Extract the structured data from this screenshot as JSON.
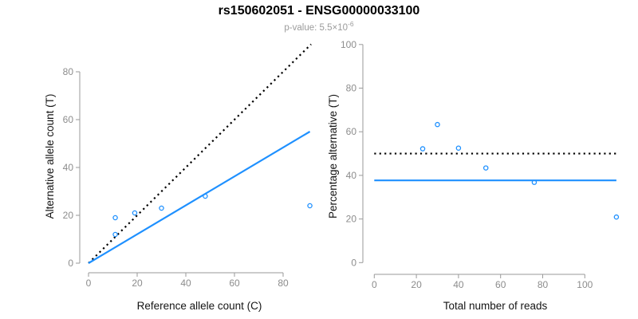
{
  "header": {
    "title": "rs150602051 - ENSG00000033100",
    "subtitle_prefix": "p-value: 5.5×10",
    "subtitle_exponent": "-6"
  },
  "colors": {
    "accent_blue": "#1E90FF",
    "axis_gray": "#9a9a9a",
    "dotted_black": "#000000"
  },
  "chart_data": [
    {
      "type": "scatter",
      "name": "allele-counts-scatter",
      "xlabel": "Reference allele count (C)",
      "ylabel": "Alternative allele count (T)",
      "x_ticks": [
        0,
        20,
        40,
        60,
        80
      ],
      "y_ticks": [
        0,
        20,
        40,
        60,
        80
      ],
      "xlim": [
        0,
        91.5
      ],
      "ylim": [
        0,
        91.5
      ],
      "grid": false,
      "legend": "none",
      "point_color": "#1E90FF",
      "points": [
        [
          11,
          19
        ],
        [
          11,
          12
        ],
        [
          19,
          21
        ],
        [
          30,
          23
        ],
        [
          48,
          28
        ],
        [
          91,
          24
        ]
      ],
      "lines": [
        {
          "name": "identity-line",
          "style": "dotted",
          "color": "#000000",
          "x1": 0,
          "y1": 0,
          "x2": 91.5,
          "y2": 91.5
        },
        {
          "name": "fitted-line",
          "style": "solid",
          "color": "#1E90FF",
          "x1": 0,
          "y1": 0,
          "x2": 91,
          "y2": 55
        }
      ]
    },
    {
      "type": "scatter",
      "name": "percentage-vs-reads-scatter",
      "xlabel": "Total number of reads",
      "ylabel": "Percentage alternative (T)",
      "x_ticks": [
        0,
        20,
        40,
        60,
        80,
        100
      ],
      "y_ticks": [
        0,
        20,
        40,
        60,
        80,
        100
      ],
      "xlim": [
        0,
        115
      ],
      "ylim": [
        0,
        100
      ],
      "grid": false,
      "legend": "none",
      "point_color": "#1E90FF",
      "points": [
        [
          23,
          52.2
        ],
        [
          30,
          63.3
        ],
        [
          40,
          52.5
        ],
        [
          53,
          43.4
        ],
        [
          76,
          36.8
        ],
        [
          115,
          20.9
        ]
      ],
      "lines": [
        {
          "name": "fifty-percent-line",
          "style": "dotted",
          "color": "#000000",
          "x1": 0,
          "y1": 50,
          "x2": 115,
          "y2": 50
        },
        {
          "name": "fitted-percentage-line",
          "style": "solid",
          "color": "#1E90FF",
          "x1": 0,
          "y1": 37.7,
          "x2": 115,
          "y2": 37.7
        }
      ]
    }
  ]
}
